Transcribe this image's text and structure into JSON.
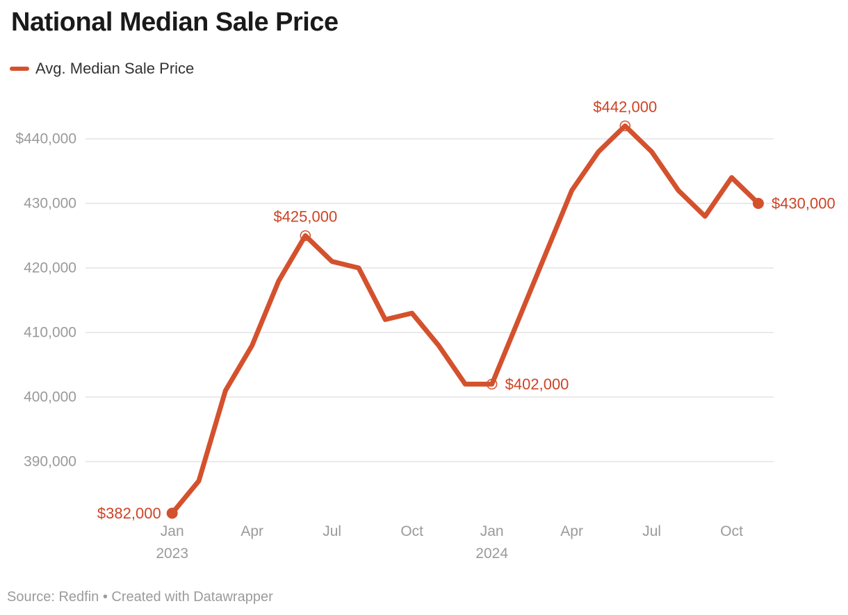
{
  "header": {
    "title": "National Median Sale Price"
  },
  "legend": {
    "label": "Avg. Median Sale Price"
  },
  "footer": {
    "text": "Source: Redfin • Created with Datawrapper"
  },
  "colors": {
    "line": "#d4512d",
    "annotation_text": "#cd4325",
    "axis_text": "#9a9a9a",
    "gridline": "#e3e3e3",
    "title_text": "#1a1a1a",
    "legend_text": "#333333",
    "footer_text": "#9b9b9b",
    "background": "#ffffff"
  },
  "chart_data": {
    "type": "line",
    "title": "National Median Sale Price",
    "xlabel": "",
    "ylabel": "",
    "grid": "horizontal",
    "legend_position": "top-left",
    "ylim": [
      380000,
      445000
    ],
    "x": [
      "Jan 2023",
      "Feb 2023",
      "Mar 2023",
      "Apr 2023",
      "May 2023",
      "Jun 2023",
      "Jul 2023",
      "Aug 2023",
      "Sep 2023",
      "Oct 2023",
      "Nov 2023",
      "Dec 2023",
      "Jan 2024",
      "Feb 2024",
      "Mar 2024",
      "Apr 2024",
      "May 2024",
      "Jun 2024",
      "Jul 2024",
      "Aug 2024",
      "Sep 2024",
      "Oct 2024",
      "Nov 2024"
    ],
    "series": [
      {
        "name": "Avg. Median Sale Price",
        "values": [
          382000,
          387000,
          401000,
          408000,
          418000,
          425000,
          421000,
          420000,
          412000,
          413000,
          408000,
          402000,
          402000,
          412000,
          422000,
          432000,
          438000,
          442000,
          438000,
          432000,
          428000,
          434000,
          430000
        ]
      }
    ],
    "y_axis": {
      "ticks": [
        {
          "label": "$440,000",
          "value": 440000
        },
        {
          "label": "430,000",
          "value": 430000
        },
        {
          "label": "420,000",
          "value": 420000
        },
        {
          "label": "410,000",
          "value": 410000
        },
        {
          "label": "400,000",
          "value": 400000
        },
        {
          "label": "390,000",
          "value": 390000
        }
      ]
    },
    "x_axis": {
      "ticks": [
        {
          "label": "Jan",
          "year": "2023",
          "index": 0
        },
        {
          "label": "Apr",
          "year": "",
          "index": 3
        },
        {
          "label": "Jul",
          "year": "",
          "index": 6
        },
        {
          "label": "Oct",
          "year": "",
          "index": 9
        },
        {
          "label": "Jan",
          "year": "2024",
          "index": 12
        },
        {
          "label": "Apr",
          "year": "",
          "index": 15
        },
        {
          "label": "Jul",
          "year": "",
          "index": 18
        },
        {
          "label": "Oct",
          "year": "",
          "index": 21
        }
      ]
    },
    "annotations": [
      {
        "index": 0,
        "label": "$382,000",
        "marker": "filled",
        "placement": "left"
      },
      {
        "index": 5,
        "label": "$425,000",
        "marker": "open",
        "placement": "above"
      },
      {
        "index": 12,
        "label": "$402,000",
        "marker": "open",
        "placement": "right"
      },
      {
        "index": 17,
        "label": "$442,000",
        "marker": "open",
        "placement": "above"
      },
      {
        "index": 22,
        "label": "$430,000",
        "marker": "filled",
        "placement": "right"
      }
    ]
  }
}
